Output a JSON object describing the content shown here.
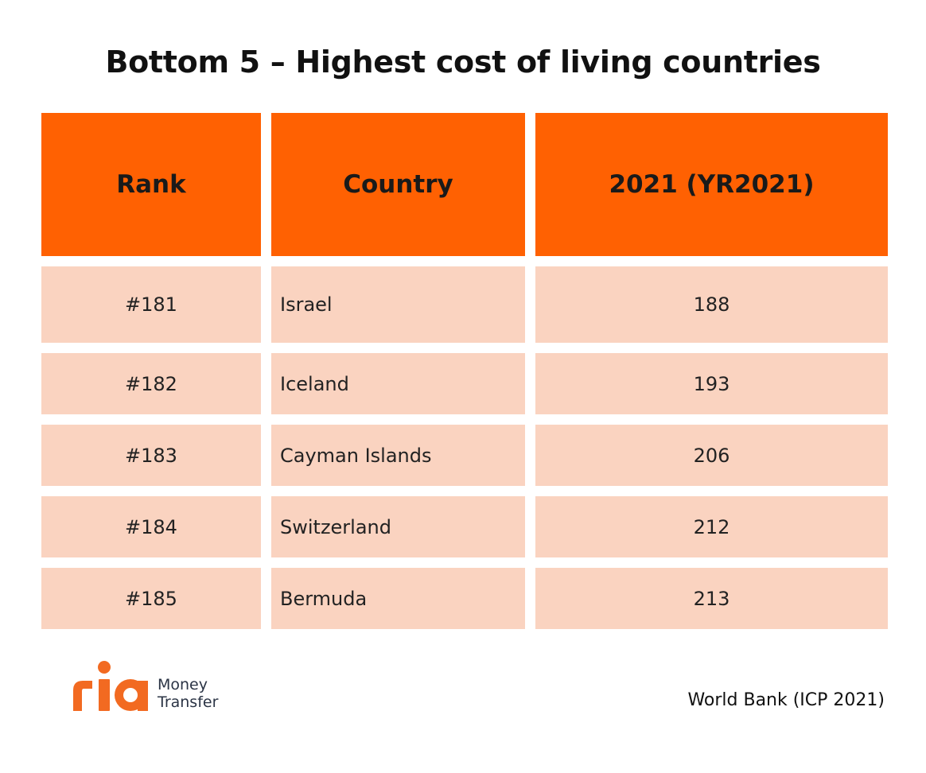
{
  "title": "Bottom 5 – Highest cost of living countries",
  "table": {
    "headers": {
      "rank": "Rank",
      "country": "Country",
      "value": "2021 (YR2021)"
    },
    "rows": [
      {
        "rank": "#181",
        "country": "Israel",
        "value": "188"
      },
      {
        "rank": "#182",
        "country": "Iceland",
        "value": "193"
      },
      {
        "rank": "#183",
        "country": "Cayman Islands",
        "value": "206"
      },
      {
        "rank": "#184",
        "country": "Switzerland",
        "value": "212"
      },
      {
        "rank": "#185",
        "country": "Bermuda",
        "value": "213"
      }
    ]
  },
  "logo": {
    "wordmark": "ria",
    "line1": "Money",
    "line2": "Transfer"
  },
  "source": "World Bank (ICP 2021)",
  "colors": {
    "header_bg": "#ff6102",
    "row_bg": "#fad3c0",
    "brand_orange": "#f26a21",
    "logo_text": "#2b3445"
  }
}
